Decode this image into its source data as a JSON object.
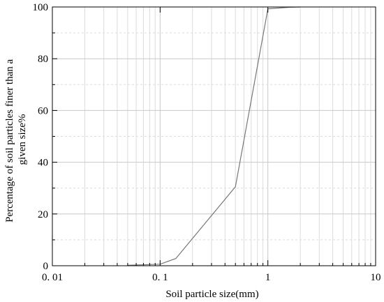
{
  "chart_data": {
    "type": "line",
    "title": "",
    "xlabel": "Soil particle size(mm)",
    "ylabel_lines": [
      "Percentage of soil particles finer than a",
      "given size%"
    ],
    "x_scale": "log",
    "xlim": [
      0.01,
      10
    ],
    "ylim": [
      0,
      100
    ],
    "x_ticks": [
      {
        "value": 0.01,
        "label": "0. 01"
      },
      {
        "value": 0.1,
        "label": "0. 1"
      },
      {
        "value": 1,
        "label": "1"
      },
      {
        "value": 10,
        "label": "10"
      }
    ],
    "y_ticks": [
      {
        "value": 0,
        "label": "0"
      },
      {
        "value": 20,
        "label": "20"
      },
      {
        "value": 40,
        "label": "40"
      },
      {
        "value": 60,
        "label": "60"
      },
      {
        "value": 80,
        "label": "80"
      },
      {
        "value": 100,
        "label": "100"
      }
    ],
    "y_minor": [
      10,
      30,
      50,
      70,
      90
    ],
    "grid": true,
    "series": [
      {
        "color": "#777777",
        "x": [
          0.05,
          0.1,
          0.14,
          0.5,
          1.0,
          1.6,
          2.0
        ],
        "y": [
          0.2,
          0.6,
          2.8,
          30.5,
          99.3,
          99.9,
          100
        ]
      }
    ]
  }
}
